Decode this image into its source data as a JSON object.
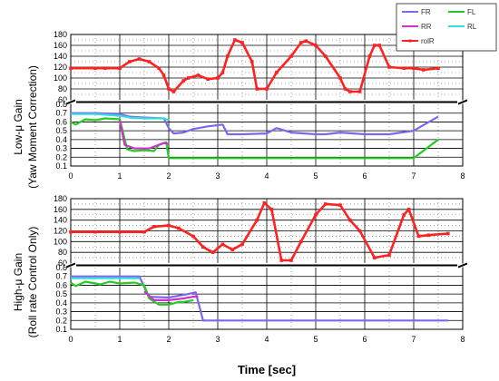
{
  "chart_data": {
    "type": "line",
    "xlabel": "Time [sec]",
    "x_ticks": [
      0,
      1,
      2,
      3,
      4,
      5,
      6,
      7,
      8
    ],
    "xlim": [
      0,
      8
    ],
    "grid": true,
    "legend": {
      "placement": "top-right",
      "entries": [
        {
          "label": "FR",
          "color": "#7b68ee"
        },
        {
          "label": "FL",
          "color": "#22cc22"
        },
        {
          "label": "RR",
          "color": "#cc33cc"
        },
        {
          "label": "RL",
          "color": "#33dddd"
        },
        {
          "label": "rolR",
          "color": "#ff2222"
        }
      ]
    },
    "panels": [
      {
        "ylabel_line1": "Low-μ Gain",
        "ylabel_line2": "(Yaw Moment Correction)",
        "upper_ticks": [
          "60",
          "80",
          "100",
          "120",
          "140",
          "160",
          "180"
        ],
        "lower_ticks": [
          "0.1",
          "0.2",
          "0.3",
          "0.4",
          "0.5",
          "0.6",
          "0.7",
          "0.8"
        ],
        "upper_range": [
          60,
          180
        ],
        "lower_range": [
          0.1,
          0.8
        ],
        "series": [
          {
            "name": "rolR",
            "color": "#ff2222",
            "axis": "upper",
            "x": [
              0,
              0.5,
              0.7,
              1.0,
              1.2,
              1.4,
              1.6,
              1.8,
              1.9,
              2.0,
              2.1,
              2.3,
              2.4,
              2.6,
              2.8,
              3.0,
              3.1,
              3.2,
              3.35,
              3.5,
              3.7,
              3.8,
              4.0,
              4.2,
              4.5,
              4.7,
              4.8,
              5.0,
              5.2,
              5.5,
              5.6,
              5.7,
              5.9,
              6.1,
              6.2,
              6.3,
              6.5,
              6.8,
              7.0,
              7.2,
              7.5
            ],
            "y": [
              118,
              118,
              118,
              118,
              130,
              135,
              130,
              118,
              105,
              80,
              75,
              95,
              100,
              105,
              98,
              100,
              110,
              140,
              170,
              165,
              130,
              80,
              80,
              110,
              140,
              165,
              168,
              160,
              140,
              100,
              80,
              75,
              75,
              140,
              160,
              160,
              120,
              118,
              118,
              115,
              118
            ]
          },
          {
            "name": "FR",
            "color": "#7b68ee",
            "axis": "lower",
            "x": [
              0,
              0.5,
              1.0,
              1.2,
              1.5,
              1.9,
              2.0,
              2.1,
              2.3,
              2.5,
              2.8,
              3.1,
              3.2,
              3.5,
              4.0,
              4.2,
              4.5,
              5.0,
              5.2,
              5.5,
              6.0,
              6.5,
              7.0,
              7.5
            ],
            "y": [
              0.7,
              0.7,
              0.69,
              0.66,
              0.65,
              0.64,
              0.53,
              0.47,
              0.48,
              0.52,
              0.55,
              0.57,
              0.46,
              0.46,
              0.47,
              0.53,
              0.48,
              0.46,
              0.46,
              0.48,
              0.46,
              0.46,
              0.5,
              0.66
            ]
          },
          {
            "name": "RL",
            "color": "#33dddd",
            "axis": "lower",
            "x": [
              0,
              0.5,
              1.0,
              1.2,
              1.5,
              1.9,
              2.0
            ],
            "y": [
              0.69,
              0.69,
              0.67,
              0.65,
              0.64,
              0.64,
              0.62
            ]
          },
          {
            "name": "FL",
            "color": "#22cc22",
            "axis": "lower",
            "x": [
              0,
              0.1,
              0.3,
              0.5,
              0.7,
              1.0,
              1.05,
              1.15,
              1.3,
              1.5,
              1.7,
              1.8,
              1.95,
              2.0,
              2.5,
              3.0,
              4.0,
              5.0,
              6.0,
              7.0,
              7.5
            ],
            "y": [
              0.6,
              0.57,
              0.63,
              0.62,
              0.64,
              0.63,
              0.52,
              0.29,
              0.27,
              0.28,
              0.27,
              0.34,
              0.37,
              0.19,
              0.19,
              0.19,
              0.19,
              0.19,
              0.19,
              0.19,
              0.4
            ]
          },
          {
            "name": "RR",
            "color": "#cc33cc",
            "axis": "lower",
            "x": [
              1.0,
              1.1,
              1.3,
              1.6,
              1.9,
              2.0
            ],
            "y": [
              0.62,
              0.34,
              0.3,
              0.3,
              0.36,
              0.35
            ]
          }
        ]
      },
      {
        "ylabel_line1": "High-μ Gain",
        "ylabel_line2": "(Roll rate Control Only)",
        "upper_ticks": [
          "60",
          "80",
          "100",
          "120",
          "140",
          "160",
          "180"
        ],
        "lower_ticks": [
          "0.1",
          "0.2",
          "0.3",
          "0.4",
          "0.5",
          "0.6",
          "0.7",
          "0.8"
        ],
        "upper_range": [
          60,
          180
        ],
        "lower_range": [
          0.1,
          0.8
        ],
        "series": [
          {
            "name": "rolR",
            "color": "#ff2222",
            "axis": "upper",
            "x": [
              0,
              0.5,
              1.0,
              1.5,
              1.7,
              2.0,
              2.2,
              2.5,
              2.7,
              2.9,
              3.1,
              3.3,
              3.5,
              3.8,
              3.95,
              4.1,
              4.3,
              4.5,
              4.7,
              5.0,
              5.2,
              5.5,
              5.7,
              5.9,
              6.2,
              6.5,
              6.8,
              6.9,
              7.1,
              7.3,
              7.7
            ],
            "y": [
              118,
              118,
              118,
              118,
              128,
              130,
              125,
              110,
              90,
              80,
              95,
              85,
              95,
              140,
              172,
              160,
              65,
              65,
              100,
              150,
              170,
              168,
              140,
              120,
              70,
              75,
              150,
              160,
              110,
              112,
              115
            ]
          },
          {
            "name": "FR",
            "color": "#7b68ee",
            "axis": "lower",
            "x": [
              0,
              0.5,
              1.0,
              1.4,
              1.5,
              1.6,
              2.0,
              2.4,
              2.55,
              2.7,
              3.0,
              4.0,
              5.0,
              6.0,
              7.0,
              7.7
            ],
            "y": [
              0.7,
              0.7,
              0.7,
              0.7,
              0.58,
              0.47,
              0.46,
              0.5,
              0.52,
              0.2,
              0.2,
              0.2,
              0.2,
              0.2,
              0.2,
              0.2
            ]
          },
          {
            "name": "RL",
            "color": "#33dddd",
            "axis": "lower",
            "x": [
              0,
              0.5,
              1.0,
              1.4
            ],
            "y": [
              0.68,
              0.68,
              0.68,
              0.68
            ]
          },
          {
            "name": "FL",
            "color": "#22cc22",
            "axis": "lower",
            "x": [
              0,
              0.1,
              0.3,
              0.6,
              0.8,
              1.0,
              1.3,
              1.5,
              1.6,
              1.8,
              2.0,
              2.2,
              2.3,
              2.5
            ],
            "y": [
              0.63,
              0.59,
              0.64,
              0.61,
              0.64,
              0.62,
              0.63,
              0.6,
              0.45,
              0.38,
              0.38,
              0.41,
              0.41,
              0.43
            ]
          },
          {
            "name": "RR",
            "color": "#cc33cc",
            "axis": "lower",
            "x": [
              1.5,
              1.7,
              2.0,
              2.3,
              2.5,
              2.6
            ],
            "y": [
              0.53,
              0.43,
              0.43,
              0.45,
              0.47,
              0.47
            ]
          }
        ]
      }
    ]
  }
}
